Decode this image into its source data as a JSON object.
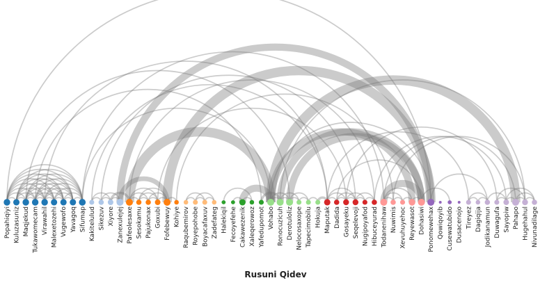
{
  "title": "Rusuni Qidev",
  "groups": [
    {
      "color": "#1f77b4",
      "nodes": [
        "Popahiqiyi",
        "Kuluzasuniz",
        "Maqjekud",
        "Tukawomecam",
        "Virawahil",
        "Malexetozehi",
        "Vugewofo",
        "Yavagoq",
        "Sifumap"
      ]
    },
    {
      "color": "#aec7e8",
      "nodes": [
        "Kakitelulud",
        "Sikezuv",
        "Xiyore",
        "Zanexulejej"
      ]
    },
    {
      "color": "#ff7f0e",
      "nodes": [
        "Pafeolesaxe",
        "Sesokamu",
        "Pajukonax",
        "Goxubi",
        "Fofebewuy",
        "Kohiye"
      ]
    },
    {
      "color": "#ffbb78",
      "nodes": [
        "Raqubemirov",
        "Royepohobe",
        "Boyacafaxuv",
        "Zadefateg"
      ]
    },
    {
      "color": "#2ca02c",
      "nodes": [
        "Halekiqil",
        "Fecoyefehe",
        "Cakawezenik",
        "Xaleqerowoz",
        "Yafedupomot"
      ]
    },
    {
      "color": "#98df8a",
      "nodes": [
        "Vohabo",
        "Ronocuzicuh",
        "Derotuloliz",
        "Nelocosaxope",
        "Tapecimobilu",
        "Hokuja"
      ]
    },
    {
      "color": "#d62728",
      "nodes": [
        "Maputak",
        "Dadida",
        "Gosayeku",
        "Seqelevoji",
        "Nugipoyafod",
        "Hibuceyurad"
      ]
    },
    {
      "color": "#ff9896",
      "nodes": [
        "Todanenihaw",
        "Nuwimis",
        "Xevuhuyehoc",
        "Reyewasot",
        "Dohasiwi"
      ]
    },
    {
      "color": "#9467bd",
      "nodes": [
        "Ponomewehax",
        "Qowiqoyib",
        "Cusewatubido",
        "Dusacenojo"
      ]
    },
    {
      "color": "#c5b0d5",
      "nodes": [
        "Tireyez",
        "Dagiqija",
        "Jodikanamun",
        "Duwagufa",
        "Sayopiw",
        "Pahapo",
        "Hugehahul",
        "Nivunadilage"
      ]
    }
  ],
  "links": [
    {
      "source": 0,
      "target": 1,
      "value": 1
    },
    {
      "source": 0,
      "target": 2,
      "value": 1
    },
    {
      "source": 0,
      "target": 3,
      "value": 1
    },
    {
      "source": 0,
      "target": 4,
      "value": 1
    },
    {
      "source": 0,
      "target": 5,
      "value": 1
    },
    {
      "source": 0,
      "target": 6,
      "value": 1
    },
    {
      "source": 0,
      "target": 7,
      "value": 1
    },
    {
      "source": 0,
      "target": 8,
      "value": 1
    },
    {
      "source": 1,
      "target": 2,
      "value": 1
    },
    {
      "source": 1,
      "target": 3,
      "value": 1
    },
    {
      "source": 1,
      "target": 4,
      "value": 1
    },
    {
      "source": 1,
      "target": 5,
      "value": 1
    },
    {
      "source": 1,
      "target": 6,
      "value": 1
    },
    {
      "source": 1,
      "target": 7,
      "value": 1
    },
    {
      "source": 1,
      "target": 8,
      "value": 1
    },
    {
      "source": 2,
      "target": 3,
      "value": 1
    },
    {
      "source": 2,
      "target": 4,
      "value": 1
    },
    {
      "source": 2,
      "target": 5,
      "value": 1
    },
    {
      "source": 2,
      "target": 6,
      "value": 1
    },
    {
      "source": 2,
      "target": 7,
      "value": 1
    },
    {
      "source": 2,
      "target": 8,
      "value": 1
    },
    {
      "source": 3,
      "target": 4,
      "value": 1
    },
    {
      "source": 3,
      "target": 5,
      "value": 1
    },
    {
      "source": 3,
      "target": 6,
      "value": 1
    },
    {
      "source": 3,
      "target": 7,
      "value": 1
    },
    {
      "source": 3,
      "target": 8,
      "value": 1
    },
    {
      "source": 4,
      "target": 5,
      "value": 1
    },
    {
      "source": 4,
      "target": 6,
      "value": 1
    },
    {
      "source": 4,
      "target": 7,
      "value": 1
    },
    {
      "source": 4,
      "target": 8,
      "value": 1
    },
    {
      "source": 5,
      "target": 6,
      "value": 1
    },
    {
      "source": 5,
      "target": 7,
      "value": 1
    },
    {
      "source": 5,
      "target": 8,
      "value": 1
    },
    {
      "source": 6,
      "target": 7,
      "value": 1
    },
    {
      "source": 6,
      "target": 8,
      "value": 1
    },
    {
      "source": 7,
      "target": 8,
      "value": 1
    },
    {
      "source": 9,
      "target": 10,
      "value": 1
    },
    {
      "source": 9,
      "target": 11,
      "value": 1
    },
    {
      "source": 10,
      "target": 11,
      "value": 1
    },
    {
      "source": 10,
      "target": 12,
      "value": 1
    },
    {
      "source": 11,
      "target": 12,
      "value": 1
    },
    {
      "source": 13,
      "target": 14,
      "value": 1
    },
    {
      "source": 13,
      "target": 15,
      "value": 1
    },
    {
      "source": 13,
      "target": 16,
      "value": 1
    },
    {
      "source": 14,
      "target": 15,
      "value": 1
    },
    {
      "source": 14,
      "target": 16,
      "value": 1
    },
    {
      "source": 14,
      "target": 17,
      "value": 1
    },
    {
      "source": 15,
      "target": 16,
      "value": 1
    },
    {
      "source": 15,
      "target": 17,
      "value": 1
    },
    {
      "source": 16,
      "target": 17,
      "value": 1
    },
    {
      "source": 17,
      "target": 18,
      "value": 1
    },
    {
      "source": 19,
      "target": 20,
      "value": 1
    },
    {
      "source": 19,
      "target": 21,
      "value": 1
    },
    {
      "source": 20,
      "target": 21,
      "value": 1
    },
    {
      "source": 20,
      "target": 22,
      "value": 1
    },
    {
      "source": 21,
      "target": 22,
      "value": 1
    },
    {
      "source": 23,
      "target": 26,
      "value": 1
    },
    {
      "source": 24,
      "target": 25,
      "value": 1
    },
    {
      "source": 25,
      "target": 26,
      "value": 1
    },
    {
      "source": 28,
      "target": 29,
      "value": 1
    },
    {
      "source": 28,
      "target": 30,
      "value": 1
    },
    {
      "source": 29,
      "target": 30,
      "value": 1
    },
    {
      "source": 29,
      "target": 31,
      "value": 1
    },
    {
      "source": 30,
      "target": 31,
      "value": 1
    },
    {
      "source": 30,
      "target": 32,
      "value": 1
    },
    {
      "source": 31,
      "target": 32,
      "value": 1
    },
    {
      "source": 32,
      "target": 33,
      "value": 1
    },
    {
      "source": 34,
      "target": 35,
      "value": 1
    },
    {
      "source": 34,
      "target": 36,
      "value": 1
    },
    {
      "source": 34,
      "target": 37,
      "value": 1
    },
    {
      "source": 35,
      "target": 36,
      "value": 1
    },
    {
      "source": 35,
      "target": 37,
      "value": 1
    },
    {
      "source": 36,
      "target": 37,
      "value": 1
    },
    {
      "source": 36,
      "target": 38,
      "value": 1
    },
    {
      "source": 37,
      "target": 38,
      "value": 1
    },
    {
      "source": 37,
      "target": 39,
      "value": 1
    },
    {
      "source": 38,
      "target": 39,
      "value": 1
    },
    {
      "source": 40,
      "target": 41,
      "value": 1
    },
    {
      "source": 40,
      "target": 42,
      "value": 1
    },
    {
      "source": 40,
      "target": 43,
      "value": 1
    },
    {
      "source": 41,
      "target": 42,
      "value": 1
    },
    {
      "source": 42,
      "target": 43,
      "value": 1
    },
    {
      "source": 43,
      "target": 44,
      "value": 1
    },
    {
      "source": 49,
      "target": 50,
      "value": 1
    },
    {
      "source": 49,
      "target": 51,
      "value": 1
    },
    {
      "source": 50,
      "target": 51,
      "value": 1
    },
    {
      "source": 52,
      "target": 53,
      "value": 1
    },
    {
      "source": 51,
      "target": 53,
      "value": 1
    },
    {
      "source": 53,
      "target": 54,
      "value": 1
    },
    {
      "source": 52,
      "target": 55,
      "value": 1
    },
    {
      "source": 53,
      "target": 56,
      "value": 1
    },
    {
      "source": 54,
      "target": 55,
      "value": 1
    },
    {
      "source": 54,
      "target": 56,
      "value": 1
    },
    {
      "source": 55,
      "target": 56,
      "value": 1
    },
    {
      "source": 55,
      "target": 57,
      "value": 1
    },
    {
      "source": 56,
      "target": 57,
      "value": 1
    },
    {
      "source": 0,
      "target": 45,
      "value": 1
    },
    {
      "source": 2,
      "target": 30,
      "value": 1
    },
    {
      "source": 4,
      "target": 34,
      "value": 1
    },
    {
      "source": 8,
      "target": 40,
      "value": 1
    },
    {
      "source": 8,
      "target": 28,
      "value": 1
    },
    {
      "source": 9,
      "target": 34,
      "value": 1
    },
    {
      "source": 10,
      "target": 37,
      "value": 1
    },
    {
      "source": 16,
      "target": 36,
      "value": 1
    },
    {
      "source": 13,
      "target": 39,
      "value": 1
    },
    {
      "source": 3,
      "target": 27,
      "value": 1
    },
    {
      "source": 18,
      "target": 41,
      "value": 1
    },
    {
      "source": 28,
      "target": 45,
      "value": 1
    },
    {
      "source": 34,
      "target": 49,
      "value": 1
    },
    {
      "source": 40,
      "target": 54,
      "value": 1
    },
    {
      "source": 39,
      "target": 53,
      "value": 1
    },
    {
      "source": 28,
      "target": 57,
      "value": 1
    },
    {
      "source": 29,
      "target": 55,
      "value": 1
    },
    {
      "source": 36,
      "target": 52,
      "value": 1
    },
    {
      "source": 41,
      "target": 55,
      "value": 1
    },
    {
      "source": 45,
      "target": 51,
      "value": 1
    },
    {
      "source": 44,
      "target": 47,
      "value": 1
    },
    {
      "source": 35,
      "target": 44,
      "value": 1
    },
    {
      "source": 12,
      "target": 17,
      "value": 4
    },
    {
      "source": 12,
      "target": 45,
      "value": 6
    },
    {
      "source": 13,
      "target": 28,
      "value": 8
    },
    {
      "source": 17,
      "target": 45,
      "value": 8
    },
    {
      "source": 25,
      "target": 28,
      "value": 6
    },
    {
      "source": 28,
      "target": 43,
      "value": 6
    },
    {
      "source": 29,
      "target": 44,
      "value": 6
    },
    {
      "source": 30,
      "target": 44,
      "value": 6
    },
    {
      "source": 40,
      "target": 44,
      "value": 6
    },
    {
      "source": 28,
      "target": 54,
      "value": 8
    },
    {
      "source": 11,
      "target": 13,
      "value": 2
    },
    {
      "source": 33,
      "target": 34,
      "value": 2
    },
    {
      "source": 27,
      "target": 29,
      "value": 2
    }
  ]
}
